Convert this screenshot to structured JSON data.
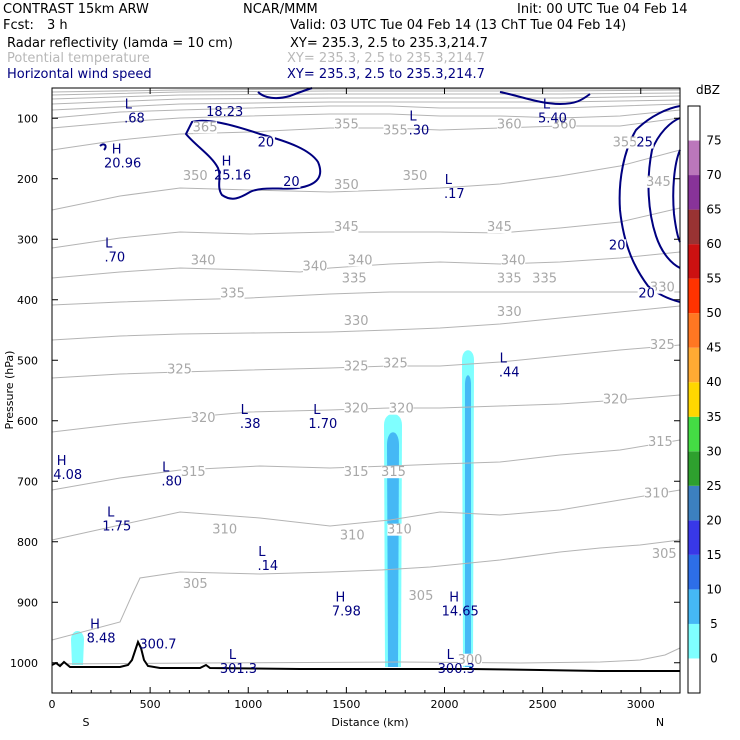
{
  "header": {
    "model": "CONTRAST 15km ARW",
    "org": "NCAR/MMM",
    "init": "Init: 00 UTC Tue 04 Feb 14",
    "fcst_label": "Fcst:",
    "fcst_value": "3 h",
    "valid": "Valid: 03 UTC Tue 04 Feb 14 (13 ChT Tue 04 Feb 14)",
    "fields": [
      {
        "name": "Radar reflectivity (lamda = 10 cm)",
        "xy": "XY= 235.3,  2.5 to 235.3,214.7",
        "color": "#000000"
      },
      {
        "name": "Potential temperature",
        "xy": "XY= 235.3,  2.5 to 235.3,214.7",
        "color": "#b8b8b8"
      },
      {
        "name": "Horizontal wind speed",
        "xy": "XY= 235.3,  2.5 to 235.3,214.7",
        "color": "#000080"
      }
    ]
  },
  "chart_data": {
    "type": "contour_cross_section",
    "xlabel": "Distance (km)",
    "ylabel": "Pressure (hPa)",
    "xlim": [
      0,
      3200
    ],
    "ylim": [
      1050,
      50
    ],
    "x_ticks": [
      0,
      500,
      1000,
      1500,
      2000,
      2500,
      3000
    ],
    "y_ticks": [
      100,
      200,
      300,
      400,
      500,
      600,
      700,
      800,
      900,
      1000
    ],
    "x_end_labels": {
      "left": "S",
      "right": "N"
    },
    "colorbar": {
      "unit": "dBZ",
      "levels": [
        0,
        5,
        10,
        15,
        20,
        25,
        30,
        35,
        40,
        45,
        50,
        55,
        60,
        65,
        70,
        75
      ],
      "colors": [
        "#ffffff",
        "#7fffff",
        "#45b8f5",
        "#2d6ee8",
        "#3838e8",
        "#3c80c0",
        "#2ea02e",
        "#44dd44",
        "#ffd700",
        "#ffaa33",
        "#ff7722",
        "#ff3300",
        "#cc1111",
        "#993333",
        "#883399",
        "#bb77bb",
        "#ffffff"
      ]
    },
    "theta_labels": [
      {
        "text": "300",
        "x": 2130,
        "p": 1000
      },
      {
        "text": "305",
        "x": 1880,
        "p": 895
      },
      {
        "text": "305",
        "x": 3120,
        "p": 825
      },
      {
        "text": "305",
        "x": 730,
        "p": 875
      },
      {
        "text": "310",
        "x": 880,
        "p": 785
      },
      {
        "text": "310",
        "x": 1530,
        "p": 795
      },
      {
        "text": "310",
        "x": 1770,
        "p": 785
      },
      {
        "text": "310",
        "x": 3080,
        "p": 725
      },
      {
        "text": "315",
        "x": 720,
        "p": 690
      },
      {
        "text": "315",
        "x": 1550,
        "p": 690
      },
      {
        "text": "315",
        "x": 1740,
        "p": 690
      },
      {
        "text": "315",
        "x": 3100,
        "p": 640
      },
      {
        "text": "320",
        "x": 1550,
        "p": 585
      },
      {
        "text": "320",
        "x": 1780,
        "p": 585
      },
      {
        "text": "320",
        "x": 2870,
        "p": 570
      },
      {
        "text": "320",
        "x": 770,
        "p": 600
      },
      {
        "text": "325",
        "x": 650,
        "p": 520
      },
      {
        "text": "325",
        "x": 1550,
        "p": 515
      },
      {
        "text": "325",
        "x": 1750,
        "p": 510
      },
      {
        "text": "325",
        "x": 3110,
        "p": 480
      },
      {
        "text": "330",
        "x": 1550,
        "p": 440
      },
      {
        "text": "330",
        "x": 2330,
        "p": 425
      },
      {
        "text": "330",
        "x": 3110,
        "p": 385
      },
      {
        "text": "335",
        "x": 920,
        "p": 395
      },
      {
        "text": "335",
        "x": 1540,
        "p": 370
      },
      {
        "text": "335",
        "x": 2330,
        "p": 370
      },
      {
        "text": "335",
        "x": 2510,
        "p": 370
      },
      {
        "text": "340",
        "x": 770,
        "p": 340
      },
      {
        "text": "340",
        "x": 1340,
        "p": 350
      },
      {
        "text": "340",
        "x": 1570,
        "p": 340
      },
      {
        "text": "340",
        "x": 2350,
        "p": 340
      },
      {
        "text": "345",
        "x": 1500,
        "p": 285
      },
      {
        "text": "345",
        "x": 2280,
        "p": 285
      },
      {
        "text": "345",
        "x": 3090,
        "p": 210
      },
      {
        "text": "350",
        "x": 730,
        "p": 200
      },
      {
        "text": "350",
        "x": 1500,
        "p": 215
      },
      {
        "text": "350",
        "x": 1850,
        "p": 200
      },
      {
        "text": "355",
        "x": 1500,
        "p": 115
      },
      {
        "text": "355",
        "x": 1750,
        "p": 125
      },
      {
        "text": "355",
        "x": 2920,
        "p": 145
      },
      {
        "text": "360",
        "x": 2330,
        "p": 115
      },
      {
        "text": "360",
        "x": 2610,
        "p": 115
      },
      {
        "text": "365",
        "x": 780,
        "p": 120
      }
    ],
    "wind_labels": [
      {
        "text": "20",
        "x": 1090,
        "p": 145
      },
      {
        "text": "20",
        "x": 1220,
        "p": 210
      },
      {
        "text": "20",
        "x": 2880,
        "p": 315
      },
      {
        "text": "20",
        "x": 3030,
        "p": 395
      },
      {
        "text": "25",
        "x": 3020,
        "p": 145
      }
    ],
    "extrema": [
      {
        "type": "L",
        "value": ".68",
        "x": 420,
        "p": 100
      },
      {
        "type": "",
        "value": "18.23",
        "x": 880,
        "p": 90
      },
      {
        "type": "L",
        "value": "5.40",
        "x": 2550,
        "p": 100
      },
      {
        "type": "L",
        "value": ".30",
        "x": 1870,
        "p": 120
      },
      {
        "type": "H",
        "value": "20.96",
        "x": 360,
        "p": 175
      },
      {
        "type": "H",
        "value": "25.16",
        "x": 920,
        "p": 195
      },
      {
        "type": "L",
        "value": ".17",
        "x": 2050,
        "p": 225
      },
      {
        "type": "L",
        "value": ".70",
        "x": 320,
        "p": 330
      },
      {
        "type": "L",
        "value": ".44",
        "x": 2330,
        "p": 520
      },
      {
        "type": "L",
        "value": ".38",
        "x": 1010,
        "p": 605
      },
      {
        "type": "L",
        "value": "1.70",
        "x": 1380,
        "p": 605
      },
      {
        "type": "H",
        "value": "4.08",
        "x": 80,
        "p": 690
      },
      {
        "type": "L",
        "value": ".80",
        "x": 610,
        "p": 700
      },
      {
        "type": "L",
        "value": "1.75",
        "x": 330,
        "p": 775
      },
      {
        "type": "L",
        "value": ".14",
        "x": 1100,
        "p": 840
      },
      {
        "type": "H",
        "value": "7.98",
        "x": 1500,
        "p": 915
      },
      {
        "type": "H",
        "value": "14.65",
        "x": 2080,
        "p": 915
      },
      {
        "type": "H",
        "value": "8.48",
        "x": 250,
        "p": 960
      },
      {
        "type": "L",
        "value": "301.3",
        "x": 950,
        "p": 1010
      },
      {
        "type": "L",
        "value": "300.3",
        "x": 2060,
        "p": 1010
      },
      {
        "type": "",
        "value": "300.7",
        "x": 540,
        "p": 970
      }
    ]
  }
}
